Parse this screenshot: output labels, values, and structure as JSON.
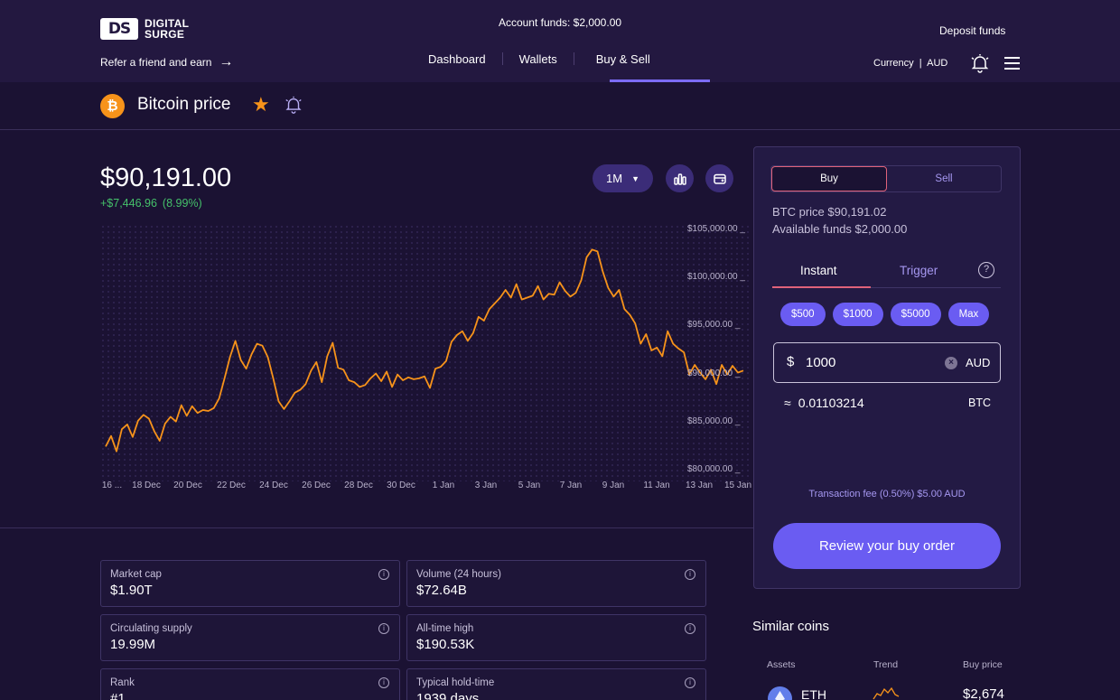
{
  "header": {
    "logo_mark": "DS",
    "logo_line1": "DIGITAL",
    "logo_line2": "SURGE",
    "refer_label": "Refer a friend and earn",
    "account_funds": "Account funds: $2,000.00",
    "nav": [
      "Dashboard",
      "Wallets",
      "Buy & Sell"
    ],
    "active_nav": "Buy & Sell",
    "deposit_label": "Deposit funds",
    "currency_label": "Currency",
    "currency_value": "AUD"
  },
  "title_row": {
    "coin_symbol": "₿",
    "title": "Bitcoin price"
  },
  "price": {
    "value": "$90,191.00",
    "change": "+$7,446.96",
    "change_pct": "(8.99%)"
  },
  "range": {
    "selected": "1M"
  },
  "chart_data": {
    "type": "line",
    "x_ticks": [
      "16 ...",
      "18 Dec",
      "20 Dec",
      "22 Dec",
      "24 Dec",
      "26 Dec",
      "28 Dec",
      "30 Dec",
      "1 Jan",
      "3 Jan",
      "5 Jan",
      "7 Jan",
      "9 Jan",
      "11 Jan",
      "13 Jan",
      "15 Jan"
    ],
    "y_ticks": [
      "$105,000.00",
      "$100,000.00",
      "$95,000.00",
      "$90,000.00",
      "$85,000.00",
      "$80,000.00"
    ],
    "ylim": [
      80000,
      105000
    ],
    "line_color": "#f7931a",
    "values": [
      82500,
      83600,
      82000,
      84300,
      84800,
      83500,
      85200,
      85800,
      85400,
      84100,
      83100,
      84900,
      85600,
      85100,
      86800,
      85700,
      86700,
      86000,
      86300,
      86200,
      86500,
      87500,
      89600,
      91800,
      93500,
      91500,
      90600,
      92100,
      93200,
      93000,
      91800,
      89600,
      87200,
      86400,
      87200,
      88100,
      88400,
      89000,
      90400,
      91300,
      89200,
      91900,
      93300,
      90700,
      90500,
      89400,
      89200,
      88700,
      88900,
      89600,
      90100,
      89300,
      90300,
      88700,
      90000,
      89400,
      89700,
      89500,
      89600,
      89800,
      88600,
      90600,
      90800,
      91400,
      93400,
      94100,
      94500,
      93500,
      94300,
      96000,
      95600,
      96800,
      97400,
      98000,
      98800,
      98000,
      99400,
      97800,
      98000,
      98200,
      99200,
      97800,
      98400,
      98300,
      99600,
      98700,
      98100,
      98500,
      99800,
      102200,
      103000,
      102800,
      100700,
      99000,
      98100,
      98800,
      96800,
      96200,
      95300,
      93200,
      94200,
      92500,
      92800,
      91900,
      94500,
      93200,
      92700,
      92300,
      90000,
      91000,
      90200,
      89500,
      90500,
      89000,
      91000,
      90000,
      90900,
      90200,
      90400
    ]
  },
  "buy_panel": {
    "buy_label": "Buy",
    "sell_label": "Sell",
    "btc_price": "BTC price $90,191.02",
    "available_funds": "Available funds $2,000.00",
    "tab_instant": "Instant",
    "tab_trigger": "Trigger",
    "help": "?",
    "chips": [
      "$500",
      "$1000",
      "$5000",
      "Max"
    ],
    "amount_symbol": "$",
    "amount_value": "1000",
    "amount_currency": "AUD",
    "approx_symbol": "≈",
    "approx_value": "0.01103214",
    "approx_unit": "BTC",
    "fee": "Transaction fee (0.50%) $5.00 AUD",
    "review_label": "Review your buy order"
  },
  "stats": [
    {
      "label": "Market cap",
      "value": "$1.90T"
    },
    {
      "label": "Volume (24 hours)",
      "value": "$72.64B"
    },
    {
      "label": "Circulating supply",
      "value": "19.99M"
    },
    {
      "label": "All-time high",
      "value": "$190.53K"
    },
    {
      "label": "Rank",
      "value": "#1"
    },
    {
      "label": "Typical hold-time",
      "value": "1939 days"
    }
  ],
  "similar": {
    "title": "Similar coins",
    "col_assets": "Assets",
    "col_trend": "Trend",
    "col_price": "Buy price",
    "rows": [
      {
        "asset": "ETH",
        "price": "$2,674"
      }
    ]
  }
}
